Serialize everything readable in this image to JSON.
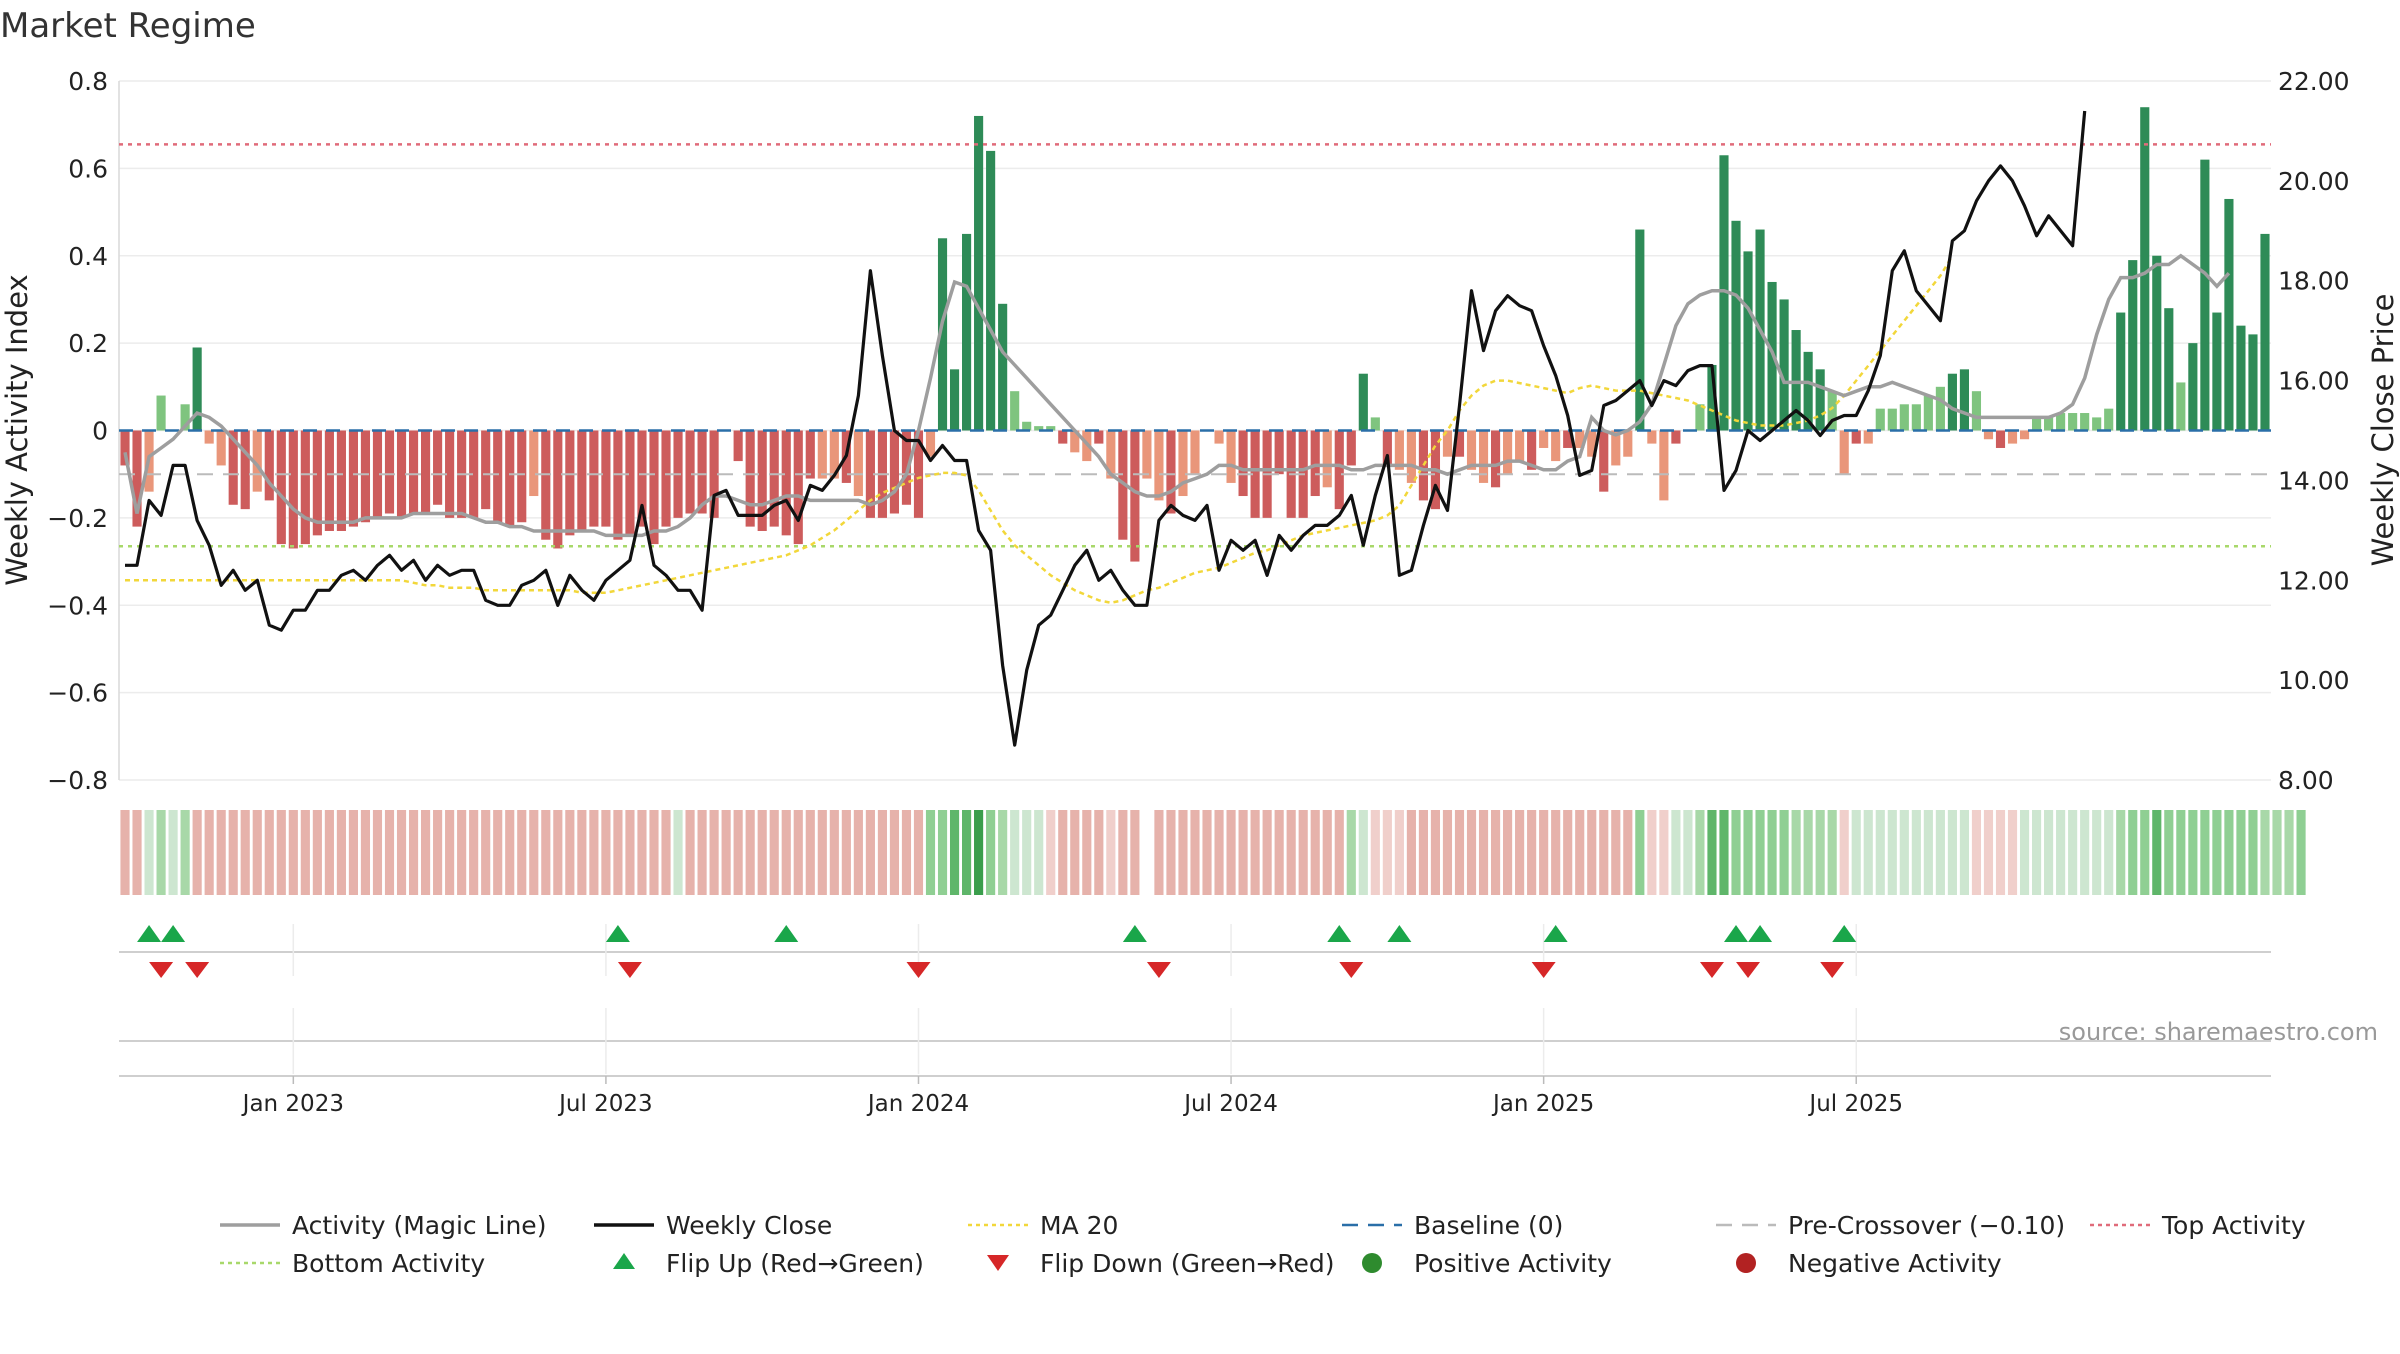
{
  "title": "Market Regime",
  "source": "source: sharemaestro.com",
  "colors": {
    "activity_line": "#9e9e9e",
    "weekly_close": "#111111",
    "ma20": "#f2d73a",
    "baseline": "#2a6fa8",
    "pre_crossover": "#bbbbbb",
    "top_activity": "#e06b7a",
    "bottom_activity": "#a8d86a",
    "flip_up": "#1aa64a",
    "flip_down": "#d62728",
    "pos_strong": "#2e8b57",
    "pos_light": "#7fc47f",
    "neg_strong": "#cd5c5c",
    "neg_light": "#e9967a"
  },
  "chart_data": {
    "type": "bar",
    "y_left": {
      "label": "Weekly Activity Index",
      "lim": [
        -0.8,
        0.8
      ],
      "ticks": [
        "0.8",
        "0.6",
        "0.4",
        "0.2",
        "0",
        "−0.2",
        "−0.4",
        "−0.6",
        "−0.8"
      ]
    },
    "y_right": {
      "label": "Weekly Close Price",
      "lim": [
        8,
        22
      ],
      "ticks": [
        "22.00",
        "20.00",
        "18.00",
        "16.00",
        "14.00",
        "12.00",
        "10.00",
        "8.00"
      ]
    },
    "x_ticks": [
      "Jan 2023",
      "Jul 2023",
      "Jan 2024",
      "Jul 2024",
      "Jan 2025",
      "Jul 2025"
    ],
    "x_tick_weeks": [
      14,
      40,
      66,
      92,
      118,
      144
    ],
    "top_activity": 0.655,
    "bottom_activity": -0.265,
    "pre_crossover": -0.1,
    "baseline": 0,
    "activity": [
      -0.08,
      -0.22,
      -0.14,
      0.08,
      0.0,
      0.06,
      0.19,
      -0.03,
      -0.08,
      -0.17,
      -0.18,
      -0.14,
      -0.16,
      -0.26,
      -0.27,
      -0.26,
      -0.24,
      -0.23,
      -0.23,
      -0.22,
      -0.21,
      -0.2,
      -0.19,
      -0.2,
      -0.19,
      -0.19,
      -0.17,
      -0.2,
      -0.2,
      -0.2,
      -0.18,
      -0.21,
      -0.22,
      -0.21,
      -0.15,
      -0.25,
      -0.27,
      -0.24,
      -0.23,
      -0.22,
      -0.22,
      -0.25,
      -0.24,
      -0.22,
      -0.26,
      -0.22,
      -0.2,
      -0.19,
      -0.19,
      -0.2,
      0.0,
      -0.07,
      -0.22,
      -0.23,
      -0.22,
      -0.24,
      -0.26,
      -0.11,
      -0.11,
      -0.11,
      -0.12,
      -0.15,
      -0.2,
      -0.2,
      -0.19,
      -0.17,
      -0.2,
      -0.06,
      0.44,
      0.14,
      0.45,
      0.72,
      0.64,
      0.29,
      0.09,
      0.02,
      0.01,
      0.01,
      -0.03,
      -0.05,
      -0.07,
      -0.03,
      -0.11,
      -0.25,
      -0.3,
      -0.11,
      -0.16,
      -0.19,
      -0.15,
      -0.1,
      0.0,
      -0.03,
      -0.12,
      -0.15,
      -0.2,
      -0.2,
      -0.1,
      -0.2,
      -0.2,
      -0.15,
      -0.13,
      -0.18,
      -0.08,
      0.13,
      0.03,
      -0.08,
      -0.09,
      -0.12,
      -0.16,
      -0.18,
      -0.06,
      -0.06,
      -0.09,
      -0.12,
      -0.13,
      -0.1,
      -0.07,
      -0.09,
      -0.04,
      -0.07,
      -0.04,
      -0.04,
      -0.06,
      -0.14,
      -0.08,
      -0.06,
      0.46,
      -0.03,
      -0.16,
      -0.03,
      0.0,
      0.06,
      0.15,
      0.63,
      0.48,
      0.41,
      0.46,
      0.34,
      0.3,
      0.23,
      0.18,
      0.14,
      0.09,
      -0.1,
      -0.03,
      -0.03,
      0.05,
      0.05,
      0.06,
      0.06,
      0.08,
      0.1,
      0.13,
      0.14,
      0.09,
      -0.02,
      -0.04,
      -0.03,
      -0.02,
      0.03,
      0.03,
      0.04,
      0.04,
      0.04,
      0.03,
      0.05,
      0.27,
      0.39,
      0.74,
      0.4,
      0.28,
      0.11,
      0.2,
      0.62,
      0.27,
      0.53,
      0.24,
      0.22,
      0.45
    ],
    "magic_line": [
      -0.05,
      -0.19,
      -0.06,
      -0.04,
      -0.02,
      0.01,
      0.04,
      0.03,
      0.01,
      -0.02,
      -0.05,
      -0.08,
      -0.12,
      -0.15,
      -0.18,
      -0.2,
      -0.21,
      -0.21,
      -0.21,
      -0.21,
      -0.2,
      -0.2,
      -0.2,
      -0.2,
      -0.19,
      -0.19,
      -0.19,
      -0.19,
      -0.19,
      -0.2,
      -0.21,
      -0.21,
      -0.22,
      -0.22,
      -0.23,
      -0.23,
      -0.23,
      -0.23,
      -0.23,
      -0.23,
      -0.24,
      -0.24,
      -0.24,
      -0.24,
      -0.23,
      -0.23,
      -0.22,
      -0.2,
      -0.17,
      -0.15,
      -0.15,
      -0.16,
      -0.17,
      -0.17,
      -0.16,
      -0.15,
      -0.15,
      -0.16,
      -0.16,
      -0.16,
      -0.16,
      -0.16,
      -0.17,
      -0.16,
      -0.14,
      -0.1,
      0.0,
      0.12,
      0.25,
      0.34,
      0.33,
      0.28,
      0.23,
      0.18,
      0.15,
      0.12,
      0.09,
      0.06,
      0.03,
      0.0,
      -0.03,
      -0.06,
      -0.1,
      -0.12,
      -0.14,
      -0.15,
      -0.15,
      -0.14,
      -0.12,
      -0.11,
      -0.1,
      -0.08,
      -0.08,
      -0.09,
      -0.09,
      -0.09,
      -0.09,
      -0.09,
      -0.09,
      -0.08,
      -0.08,
      -0.08,
      -0.09,
      -0.09,
      -0.08,
      -0.08,
      -0.08,
      -0.08,
      -0.09,
      -0.09,
      -0.1,
      -0.09,
      -0.08,
      -0.08,
      -0.08,
      -0.07,
      -0.07,
      -0.08,
      -0.09,
      -0.09,
      -0.07,
      -0.06,
      0.03,
      0.0,
      -0.01,
      0.0,
      0.02,
      0.06,
      0.15,
      0.24,
      0.29,
      0.31,
      0.32,
      0.32,
      0.31,
      0.28,
      0.23,
      0.18,
      0.11,
      0.11,
      0.11,
      0.1,
      0.09,
      0.08,
      0.09,
      0.1,
      0.1,
      0.11,
      0.1,
      0.09,
      0.08,
      0.07,
      0.05,
      0.04,
      0.03,
      0.03,
      0.03,
      0.03,
      0.03,
      0.03,
      0.03,
      0.04,
      0.06,
      0.12,
      0.22,
      0.3,
      0.35,
      0.35,
      0.36,
      0.38,
      0.38,
      0.4,
      0.38,
      0.36,
      0.33,
      0.36
    ],
    "weekly_close": [
      12.3,
      12.3,
      13.6,
      13.3,
      14.3,
      14.3,
      13.2,
      12.7,
      11.9,
      12.2,
      11.8,
      12.0,
      11.1,
      11.0,
      11.4,
      11.4,
      11.8,
      11.8,
      12.1,
      12.2,
      12.0,
      12.3,
      12.5,
      12.2,
      12.4,
      12.0,
      12.3,
      12.1,
      12.2,
      12.2,
      11.6,
      11.5,
      11.5,
      11.9,
      12.0,
      12.2,
      11.5,
      12.1,
      11.8,
      11.6,
      12.0,
      12.2,
      12.4,
      13.5,
      12.3,
      12.1,
      11.8,
      11.8,
      11.4,
      13.7,
      13.8,
      13.3,
      13.3,
      13.3,
      13.5,
      13.6,
      13.2,
      13.9,
      13.8,
      14.1,
      14.5,
      15.7,
      18.2,
      16.5,
      15.0,
      14.8,
      14.8,
      14.4,
      14.7,
      14.4,
      14.4,
      13.0,
      12.6,
      10.3,
      8.7,
      10.2,
      11.1,
      11.3,
      11.8,
      12.3,
      12.6,
      12.0,
      12.2,
      11.8,
      11.5,
      11.5,
      13.2,
      13.5,
      13.3,
      13.2,
      13.5,
      12.2,
      12.8,
      12.6,
      12.8,
      12.1,
      12.9,
      12.6,
      12.9,
      13.1,
      13.1,
      13.3,
      13.7,
      12.7,
      13.7,
      14.5,
      12.1,
      12.2,
      13.1,
      13.9,
      13.4,
      15.5,
      17.8,
      16.6,
      17.4,
      17.7,
      17.5,
      17.4,
      16.7,
      16.1,
      15.3,
      14.1,
      14.2,
      15.5,
      15.6,
      15.8,
      16.0,
      15.5,
      16.0,
      15.9,
      16.2,
      16.3,
      16.3,
      13.8,
      14.2,
      15.0,
      14.8,
      15.0,
      15.2,
      15.4,
      15.2,
      14.9,
      15.2,
      15.3,
      15.3,
      15.8,
      16.5,
      18.2,
      18.6,
      17.8,
      17.5,
      17.2,
      18.8,
      19.0,
      19.6,
      20.0,
      20.3,
      20.0,
      19.5,
      18.9,
      19.3,
      19.0,
      18.7,
      21.4
    ],
    "ma20": [
      12.0,
      12.0,
      12.0,
      12.0,
      12.0,
      12.0,
      12.0,
      12.0,
      12.0,
      12.0,
      12.0,
      12.0,
      12.0,
      12.0,
      12.0,
      12.0,
      12.0,
      12.0,
      12.0,
      12.0,
      12.0,
      12.0,
      12.0,
      12.0,
      11.95,
      11.9,
      11.9,
      11.85,
      11.85,
      11.85,
      11.8,
      11.8,
      11.8,
      11.8,
      11.8,
      11.8,
      11.8,
      11.8,
      11.75,
      11.75,
      11.75,
      11.8,
      11.85,
      11.9,
      11.95,
      12.0,
      12.05,
      12.1,
      12.15,
      12.2,
      12.25,
      12.3,
      12.35,
      12.4,
      12.45,
      12.5,
      12.6,
      12.7,
      12.85,
      13.0,
      13.2,
      13.4,
      13.6,
      13.75,
      13.85,
      13.95,
      14.05,
      14.1,
      14.15,
      14.15,
      14.1,
      13.8,
      13.4,
      13.0,
      12.7,
      12.5,
      12.3,
      12.1,
      11.95,
      11.8,
      11.7,
      11.6,
      11.55,
      11.6,
      11.7,
      11.8,
      11.85,
      11.95,
      12.05,
      12.15,
      12.2,
      12.25,
      12.35,
      12.45,
      12.55,
      12.6,
      12.7,
      12.8,
      12.9,
      12.95,
      13.0,
      13.05,
      13.1,
      13.15,
      13.2,
      13.3,
      13.5,
      13.9,
      14.3,
      14.7,
      15.0,
      15.4,
      15.7,
      15.9,
      16.0,
      16.0,
      15.95,
      15.9,
      15.85,
      15.8,
      15.75,
      15.85,
      15.9,
      15.85,
      15.8,
      15.8,
      15.8,
      15.75,
      15.7,
      15.65,
      15.6,
      15.5,
      15.4,
      15.3,
      15.2,
      15.15,
      15.1,
      15.1,
      15.1,
      15.15,
      15.2,
      15.3,
      15.45,
      15.7,
      16.0,
      16.3,
      16.6,
      16.9,
      17.2,
      17.5,
      17.8,
      18.1,
      18.5
    ],
    "regime_strip": [
      1,
      1,
      3,
      4,
      3,
      4,
      1,
      1,
      1,
      1,
      1,
      1,
      1,
      1,
      1,
      1,
      1,
      1,
      1,
      1,
      1,
      1,
      1,
      1,
      1,
      1,
      1,
      1,
      1,
      1,
      1,
      1,
      1,
      1,
      1,
      1,
      1,
      1,
      1,
      1,
      1,
      1,
      1,
      1,
      1,
      1,
      3,
      1,
      1,
      1,
      1,
      1,
      1,
      1,
      1,
      1,
      1,
      1,
      1,
      1,
      1,
      1,
      1,
      1,
      1,
      1,
      1,
      5,
      5,
      6,
      6,
      7,
      5,
      4,
      3,
      3,
      3,
      2,
      1,
      1,
      1,
      1,
      2,
      1,
      1,
      -1,
      1,
      1,
      1,
      1,
      1,
      1,
      1,
      1,
      1,
      1,
      1,
      1,
      1,
      1,
      1,
      1,
      4,
      3,
      2,
      2,
      2,
      1,
      1,
      1,
      1,
      1,
      1,
      1,
      1,
      1,
      1,
      1,
      1,
      1,
      1,
      1,
      1,
      1,
      1,
      1,
      5,
      2,
      2,
      3,
      3,
      4,
      6,
      6,
      5,
      5,
      5,
      5,
      5,
      4,
      4,
      4,
      4,
      2,
      3,
      3,
      3,
      3,
      3,
      3,
      3,
      3,
      3,
      3,
      2,
      2,
      2,
      2,
      3,
      3,
      3,
      3,
      3,
      3,
      3,
      3,
      4,
      5,
      5,
      6,
      5,
      5,
      5,
      5,
      5,
      5,
      5,
      5,
      4,
      4,
      4,
      5
    ],
    "flip_up_weeks": [
      2,
      4,
      41,
      55,
      84,
      101,
      106,
      119,
      134,
      136,
      143
    ],
    "flip_down_weeks": [
      3,
      6,
      42,
      66,
      86,
      102,
      118,
      132,
      135,
      142
    ],
    "legend": [
      {
        "label": "Activity (Magic Line)",
        "sym": "line",
        "color": "#9e9e9e"
      },
      {
        "label": "Weekly Close",
        "sym": "line",
        "color": "#111111"
      },
      {
        "label": "MA 20",
        "sym": "dotted",
        "color": "#f2d73a"
      },
      {
        "label": "Baseline (0)",
        "sym": "dashed",
        "color": "#2a6fa8"
      },
      {
        "label": "Pre-Crossover (−0.10)",
        "sym": "dashed",
        "color": "#bbbbbb"
      },
      {
        "label": "Top Activity",
        "sym": "dotted",
        "color": "#e06b7a"
      },
      {
        "label": "Bottom Activity",
        "sym": "dotted",
        "color": "#a8d86a"
      },
      {
        "label": "Flip Up (Red→Green)",
        "sym": "tri-up",
        "color": "#1aa64a"
      },
      {
        "label": "Flip Down (Green→Red)",
        "sym": "tri-down",
        "color": "#d62728"
      },
      {
        "label": "Positive Activity",
        "sym": "dot",
        "color": "#2e8b2e"
      },
      {
        "label": "Negative Activity",
        "sym": "dot",
        "color": "#b22222"
      }
    ]
  }
}
